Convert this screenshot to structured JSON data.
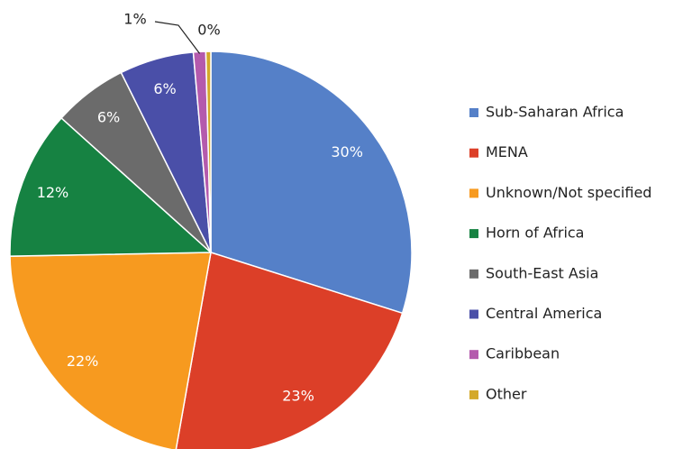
{
  "chart_data": {
    "type": "pie",
    "categories": [
      "Sub-Saharan Africa",
      "MENA",
      "Unknown/Not specified",
      "Horn of Africa",
      "South-East Asia",
      "Central America",
      "Caribbean",
      "Other"
    ],
    "values": [
      30,
      23,
      22,
      12,
      6,
      6,
      1,
      0.4
    ],
    "value_labels": [
      "30%",
      "23%",
      "22%",
      "12%",
      "6%",
      "6%",
      "1%",
      "0%"
    ],
    "colors": [
      "#5580c8",
      "#dc3f28",
      "#f79a1f",
      "#168242",
      "#6b6b6b",
      "#4a4fa8",
      "#b45aad",
      "#d4a92a"
    ],
    "legend": "right"
  }
}
